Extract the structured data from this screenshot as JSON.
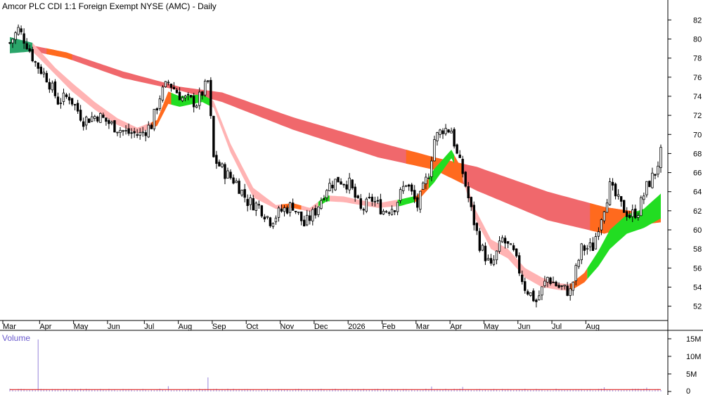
{
  "chart_data": {
    "type": "candlestick",
    "title": "Amcor PLC CDI 1:1 Foreign Exempt NYSE (AMC) - Daily",
    "volume_label": "Volume",
    "x_labels": [
      "Mar",
      "Apr",
      "May",
      "Jun",
      "Jul",
      "Aug",
      "Sep",
      "Oct",
      "Nov",
      "Dec",
      "2026",
      "Feb",
      "Mar",
      "Apr",
      "May",
      "Jun",
      "Jul",
      "Aug"
    ],
    "y_ticks": [
      52,
      54,
      56,
      58,
      60,
      62,
      64,
      66,
      68,
      70,
      72,
      74,
      76,
      78,
      80,
      82
    ],
    "ylim": [
      50.5,
      83.5
    ],
    "volume_ticks": [
      "0",
      "5M",
      "10M",
      "15M"
    ],
    "volume_ylim": [
      0,
      15
    ],
    "price_path": [
      [
        0,
        79.6
      ],
      [
        3,
        81
      ],
      [
        6,
        79.5
      ],
      [
        9,
        77.5
      ],
      [
        13,
        76
      ],
      [
        17,
        73.5
      ],
      [
        21,
        74
      ],
      [
        26,
        71.5
      ],
      [
        31,
        72
      ],
      [
        36,
        71
      ],
      [
        41,
        70.2
      ],
      [
        46,
        70
      ],
      [
        50,
        71
      ],
      [
        53,
        74
      ],
      [
        56,
        75.5
      ],
      [
        61,
        73.8
      ],
      [
        66,
        73.3
      ],
      [
        70,
        75.5
      ],
      [
        72,
        67.5
      ],
      [
        76,
        66
      ],
      [
        80,
        65
      ],
      [
        84,
        63
      ],
      [
        88,
        62.5
      ],
      [
        92,
        61
      ],
      [
        96,
        62
      ],
      [
        100,
        62.6
      ],
      [
        104,
        60.5
      ],
      [
        108,
        62
      ],
      [
        112,
        64.5
      ],
      [
        116,
        65.3
      ],
      [
        120,
        64.8
      ],
      [
        124,
        62
      ],
      [
        128,
        63.2
      ],
      [
        132,
        62
      ],
      [
        136,
        62.5
      ],
      [
        140,
        65
      ],
      [
        144,
        62.5
      ],
      [
        148,
        66
      ],
      [
        150,
        69.5
      ],
      [
        153,
        70.6
      ],
      [
        156,
        70.5
      ],
      [
        158,
        67.8
      ],
      [
        160,
        66
      ],
      [
        163,
        62
      ],
      [
        166,
        58.5
      ],
      [
        170,
        56
      ],
      [
        174,
        59
      ],
      [
        178,
        57.5
      ],
      [
        182,
        54
      ],
      [
        186,
        52.5
      ],
      [
        190,
        55
      ],
      [
        194,
        54
      ],
      [
        198,
        53.5
      ],
      [
        202,
        58
      ],
      [
        206,
        58.2
      ],
      [
        208,
        60.5
      ],
      [
        212,
        64.5
      ],
      [
        216,
        62.5
      ],
      [
        219,
        61.5
      ],
      [
        222,
        62
      ],
      [
        225,
        64.5
      ],
      [
        228,
        66
      ],
      [
        230,
        68
      ]
    ],
    "ema_band": {
      "upper": [
        [
          0,
          79.8
        ],
        [
          20,
          78.6
        ],
        [
          40,
          76.6
        ],
        [
          60,
          75
        ],
        [
          75,
          74.4
        ],
        [
          100,
          71.8
        ],
        [
          130,
          69.2
        ],
        [
          150,
          67.6
        ],
        [
          165,
          66.6
        ],
        [
          190,
          64
        ],
        [
          210,
          62.4
        ],
        [
          230,
          61.5
        ]
      ],
      "lower": [
        [
          0,
          79.2
        ],
        [
          20,
          78
        ],
        [
          40,
          75.9
        ],
        [
          60,
          74.6
        ],
        [
          75,
          73.4
        ],
        [
          100,
          70.5
        ],
        [
          130,
          67.6
        ],
        [
          150,
          66.3
        ],
        [
          165,
          64.1
        ],
        [
          190,
          61
        ],
        [
          210,
          59.6
        ],
        [
          220,
          60.4
        ],
        [
          230,
          60.8
        ]
      ],
      "colors": [
        "#f0686c",
        "#ff6a1e"
      ]
    },
    "short_band": {
      "upper": [
        [
          0,
          80.2
        ],
        [
          8,
          79.6
        ],
        [
          16,
          77
        ],
        [
          22,
          75.4
        ],
        [
          30,
          73.4
        ],
        [
          38,
          71.7
        ],
        [
          45,
          70.7
        ],
        [
          52,
          71.5
        ],
        [
          56,
          74.5
        ],
        [
          60,
          74
        ],
        [
          68,
          74.2
        ],
        [
          72,
          73.5
        ],
        [
          78,
          69
        ],
        [
          86,
          64.4
        ],
        [
          94,
          62.6
        ],
        [
          100,
          62.8
        ],
        [
          106,
          62.3
        ],
        [
          112,
          63.6
        ],
        [
          118,
          63.5
        ],
        [
          124,
          63.1
        ],
        [
          130,
          62.8
        ],
        [
          138,
          63.2
        ],
        [
          144,
          63.6
        ],
        [
          150,
          66.4
        ],
        [
          156,
          68.4
        ],
        [
          160,
          66.2
        ],
        [
          164,
          62.4
        ],
        [
          170,
          59
        ],
        [
          176,
          58
        ],
        [
          182,
          56
        ],
        [
          188,
          55
        ],
        [
          194,
          54.4
        ],
        [
          198,
          54.3
        ],
        [
          203,
          55.5
        ],
        [
          208,
          57.8
        ],
        [
          212,
          60
        ],
        [
          218,
          61.6
        ],
        [
          224,
          62.2
        ],
        [
          230,
          63.8
        ]
      ],
      "lower": [
        [
          0,
          78.5
        ],
        [
          8,
          78.7
        ],
        [
          16,
          76.3
        ],
        [
          22,
          74.5
        ],
        [
          30,
          72.6
        ],
        [
          38,
          71
        ],
        [
          45,
          70.1
        ],
        [
          52,
          70.9
        ],
        [
          56,
          73.2
        ],
        [
          60,
          72.9
        ],
        [
          68,
          73.4
        ],
        [
          72,
          72.8
        ],
        [
          78,
          68.1
        ],
        [
          86,
          63.4
        ],
        [
          94,
          62.2
        ],
        [
          100,
          62.3
        ],
        [
          106,
          61.9
        ],
        [
          112,
          63
        ],
        [
          118,
          62.9
        ],
        [
          124,
          62.6
        ],
        [
          130,
          62.3
        ],
        [
          138,
          62.5
        ],
        [
          144,
          63
        ],
        [
          150,
          65
        ],
        [
          156,
          67.5
        ],
        [
          160,
          65.3
        ],
        [
          164,
          61.4
        ],
        [
          170,
          58
        ],
        [
          176,
          57
        ],
        [
          182,
          55
        ],
        [
          188,
          54
        ],
        [
          194,
          53.7
        ],
        [
          198,
          53.6
        ],
        [
          203,
          54.5
        ],
        [
          208,
          56.2
        ],
        [
          212,
          58
        ],
        [
          218,
          59.6
        ],
        [
          224,
          60.2
        ],
        [
          230,
          61.2
        ]
      ],
      "colors": [
        "#ffb3b3",
        "#22dd22",
        "#ff6a1e",
        "#2aa56a"
      ]
    },
    "volume_spike": {
      "day": 10,
      "value": 14.8
    },
    "volume_spikes": [
      [
        70,
        4
      ],
      [
        149,
        1.4
      ],
      [
        56,
        1.5
      ],
      [
        160,
        1.3
      ],
      [
        210,
        1.2
      ],
      [
        225,
        1.1
      ]
    ]
  }
}
